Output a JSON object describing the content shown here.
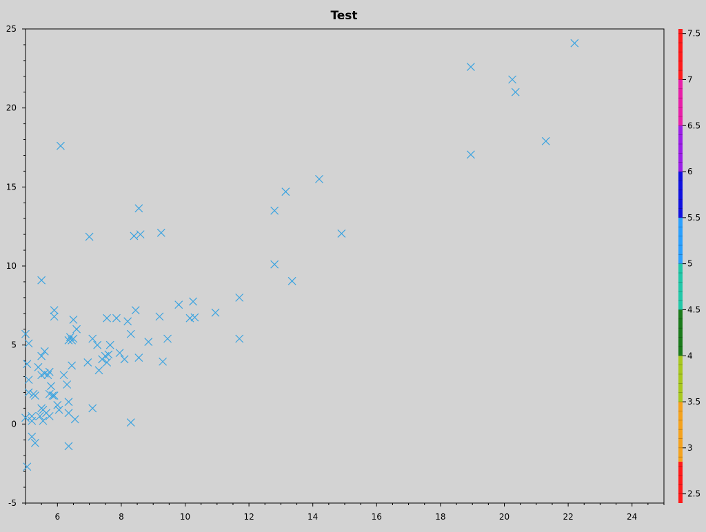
{
  "chart_data": {
    "type": "scatter",
    "title": "Test",
    "xlabel": "",
    "ylabel": "",
    "xlim": [
      5,
      25
    ],
    "ylim": [
      -5,
      25
    ],
    "x_ticks": [
      6,
      8,
      10,
      12,
      14,
      16,
      18,
      20,
      22,
      24
    ],
    "y_ticks": [
      -5,
      0,
      5,
      10,
      15,
      20,
      25
    ],
    "grid": false,
    "marker": "x",
    "marker_color": "#3aa3e0",
    "colorbar": {
      "min": 2.4,
      "max": 7.55,
      "ticks": [
        2.5,
        3,
        3.5,
        4,
        4.5,
        5,
        5.5,
        6,
        6.5,
        7,
        7.5
      ],
      "segments": [
        {
          "from": 2.4,
          "to": 2.85,
          "color": "#ff1a1a"
        },
        {
          "from": 2.85,
          "to": 3.5,
          "color": "#f5a21c"
        },
        {
          "from": 3.5,
          "to": 4.0,
          "color": "#a8c81e"
        },
        {
          "from": 4.0,
          "to": 4.5,
          "color": "#1a7a1a"
        },
        {
          "from": 4.5,
          "to": 5.0,
          "color": "#20c8a8"
        },
        {
          "from": 5.0,
          "to": 5.5,
          "color": "#2aa0ff"
        },
        {
          "from": 5.5,
          "to": 6.0,
          "color": "#1010e0"
        },
        {
          "from": 6.0,
          "to": 6.5,
          "color": "#9b1ee8"
        },
        {
          "from": 6.5,
          "to": 7.0,
          "color": "#e81ea8"
        },
        {
          "from": 7.0,
          "to": 7.55,
          "color": "#ff1a1a"
        }
      ]
    },
    "series": [
      {
        "points": [
          [
            5.0,
            5.7
          ],
          [
            5.1,
            5.1
          ],
          [
            5.05,
            3.8
          ],
          [
            5.1,
            2.8
          ],
          [
            5.1,
            2.0
          ],
          [
            5.25,
            1.9
          ],
          [
            5.0,
            0.4
          ],
          [
            5.2,
            0.2
          ],
          [
            5.2,
            0.5
          ],
          [
            5.2,
            -0.8
          ],
          [
            5.3,
            -1.2
          ],
          [
            5.05,
            -2.7
          ],
          [
            5.3,
            1.8
          ],
          [
            5.4,
            3.6
          ],
          [
            5.5,
            4.3
          ],
          [
            5.6,
            4.6
          ],
          [
            5.6,
            3.2
          ],
          [
            5.5,
            3.1
          ],
          [
            5.7,
            3.1
          ],
          [
            5.75,
            3.3
          ],
          [
            5.75,
            1.9
          ],
          [
            5.8,
            2.4
          ],
          [
            5.85,
            1.8
          ],
          [
            5.9,
            1.8
          ],
          [
            5.5,
            1.0
          ],
          [
            5.55,
            0.9
          ],
          [
            5.45,
            0.5
          ],
          [
            5.55,
            0.2
          ],
          [
            5.65,
            0.7
          ],
          [
            5.75,
            0.5
          ],
          [
            5.5,
            9.1
          ],
          [
            5.9,
            7.2
          ],
          [
            5.9,
            6.8
          ],
          [
            6.1,
            17.6
          ],
          [
            6.0,
            1.2
          ],
          [
            6.05,
            0.9
          ],
          [
            6.2,
            3.1
          ],
          [
            6.3,
            2.5
          ],
          [
            6.35,
            5.3
          ],
          [
            6.4,
            5.5
          ],
          [
            6.45,
            5.3
          ],
          [
            6.5,
            5.4
          ],
          [
            6.5,
            6.6
          ],
          [
            6.6,
            6.0
          ],
          [
            6.45,
            3.7
          ],
          [
            6.35,
            1.4
          ],
          [
            6.35,
            0.7
          ],
          [
            6.55,
            0.3
          ],
          [
            6.35,
            -1.4
          ],
          [
            6.95,
            3.9
          ],
          [
            7.0,
            11.85
          ],
          [
            7.1,
            5.4
          ],
          [
            7.1,
            1.0
          ],
          [
            7.25,
            5.0
          ],
          [
            7.3,
            3.4
          ],
          [
            7.4,
            4.1
          ],
          [
            7.5,
            4.3
          ],
          [
            7.55,
            3.9
          ],
          [
            7.6,
            4.4
          ],
          [
            7.55,
            6.7
          ],
          [
            7.65,
            5.0
          ],
          [
            7.85,
            6.7
          ],
          [
            7.95,
            4.5
          ],
          [
            8.1,
            4.1
          ],
          [
            8.2,
            6.5
          ],
          [
            8.3,
            5.7
          ],
          [
            8.3,
            0.1
          ],
          [
            8.4,
            11.9
          ],
          [
            8.45,
            7.2
          ],
          [
            8.55,
            13.65
          ],
          [
            8.55,
            4.2
          ],
          [
            8.6,
            12.0
          ],
          [
            8.85,
            5.2
          ],
          [
            9.2,
            6.8
          ],
          [
            9.25,
            12.1
          ],
          [
            9.3,
            3.95
          ],
          [
            9.45,
            5.4
          ],
          [
            9.8,
            7.55
          ],
          [
            10.15,
            6.7
          ],
          [
            10.25,
            7.75
          ],
          [
            10.3,
            6.75
          ],
          [
            10.95,
            7.05
          ],
          [
            11.7,
            8.0
          ],
          [
            11.7,
            5.4
          ],
          [
            12.8,
            13.5
          ],
          [
            12.8,
            10.1
          ],
          [
            13.15,
            14.7
          ],
          [
            13.35,
            9.05
          ],
          [
            14.2,
            15.5
          ],
          [
            14.9,
            12.05
          ],
          [
            18.95,
            22.6
          ],
          [
            18.95,
            17.05
          ],
          [
            20.25,
            21.8
          ],
          [
            20.35,
            21.0
          ],
          [
            21.3,
            17.9
          ],
          [
            22.2,
            24.1
          ]
        ]
      }
    ]
  }
}
